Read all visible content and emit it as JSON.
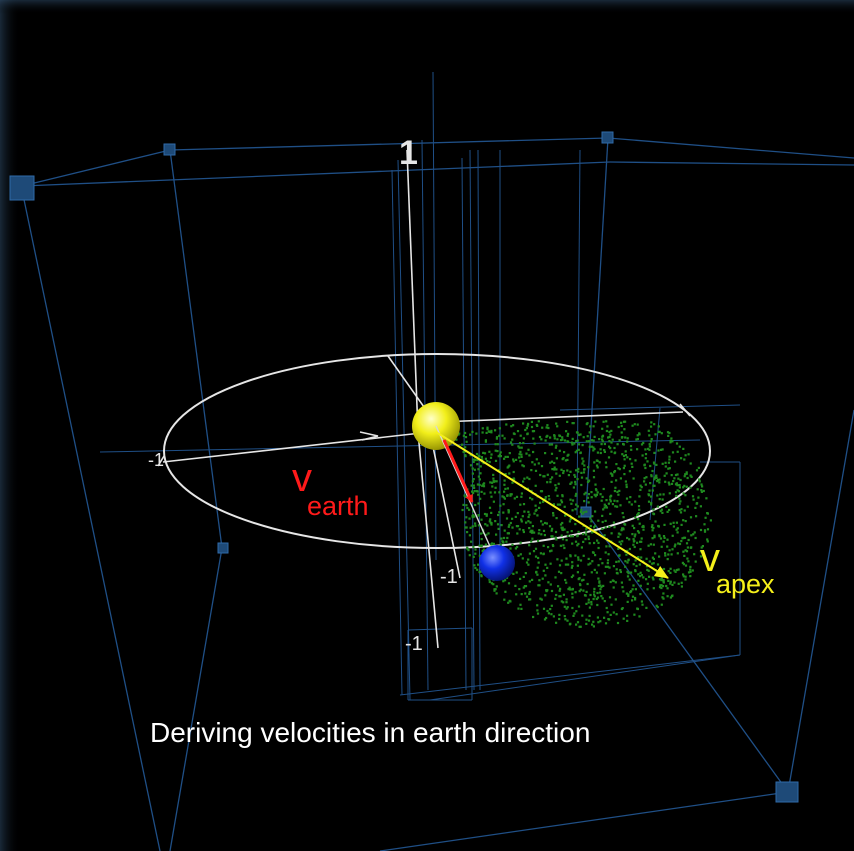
{
  "colors": {
    "background": "#000000",
    "grid": "#1f4f86",
    "axis": "#e6e6e6",
    "sun": "#f2ef1a",
    "earth": "#1030e6",
    "particles": "#1f8a1f",
    "v_earth": "#ff1a1a",
    "v_apex": "#f5f01a",
    "caption": "#ffffff"
  },
  "axis_labels": {
    "z_top": "1",
    "y_neg": "-1",
    "x_neg": "-1",
    "z_bottom": "-1"
  },
  "vectors": {
    "v_earth": {
      "symbol": "v",
      "subscript": "earth"
    },
    "v_apex": {
      "symbol": "v",
      "subscript": "apex"
    }
  },
  "caption": "Deriving velocities in earth direction"
}
